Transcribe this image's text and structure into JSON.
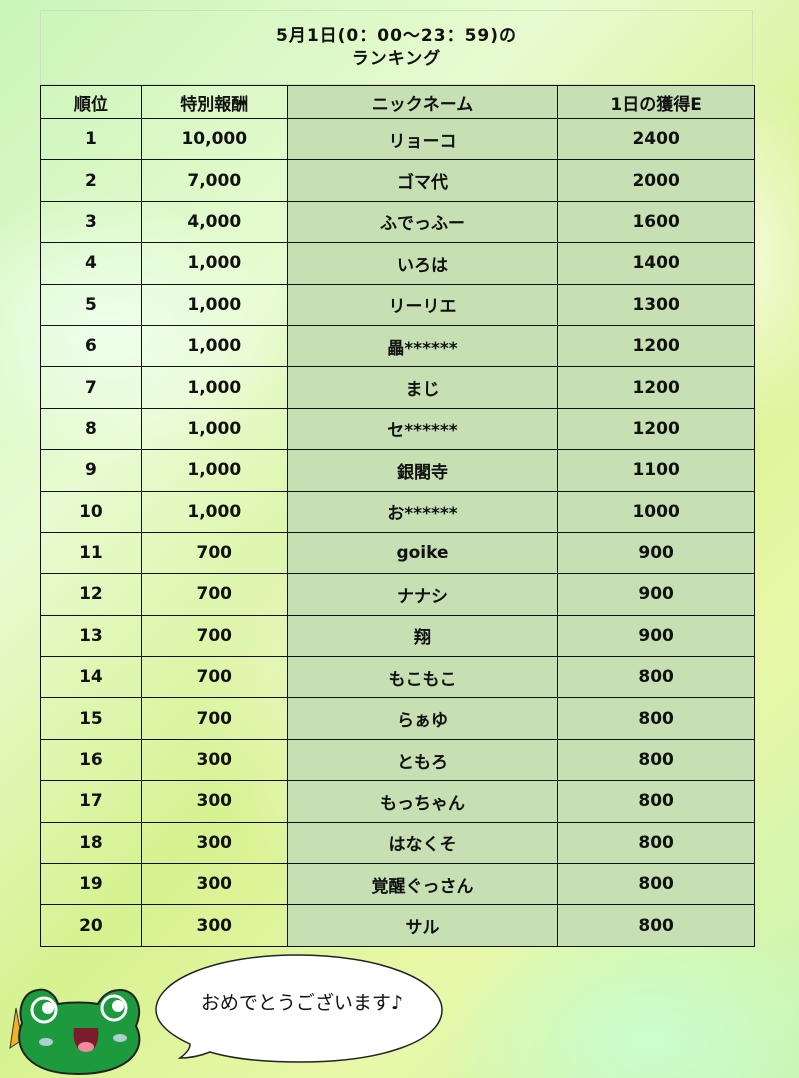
{
  "title": {
    "line1": "5月1日(0：00～23：59)の",
    "line2": "ランキング"
  },
  "headers": [
    "順位",
    "特別報酬",
    "ニックネーム",
    "1日の獲得E"
  ],
  "rows": [
    [
      "1",
      "10,000",
      "リョーコ",
      "2400"
    ],
    [
      "2",
      "7,000",
      "ゴマ代",
      "2000"
    ],
    [
      "3",
      "4,000",
      "ふでっふー",
      "1600"
    ],
    [
      "4",
      "1,000",
      "いろは",
      "1400"
    ],
    [
      "5",
      "1,000",
      "リーリエ",
      "1300"
    ],
    [
      "6",
      "1,000",
      "畾******",
      "1200"
    ],
    [
      "7",
      "1,000",
      "まじ",
      "1200"
    ],
    [
      "8",
      "1,000",
      "セ******",
      "1200"
    ],
    [
      "9",
      "1,000",
      "銀閣寺",
      "1100"
    ],
    [
      "10",
      "1,000",
      "お******",
      "1000"
    ],
    [
      "11",
      "700",
      "goike",
      "900"
    ],
    [
      "12",
      "700",
      "ナナシ",
      "900"
    ],
    [
      "13",
      "700",
      "翔",
      "900"
    ],
    [
      "14",
      "700",
      "もこもこ",
      "800"
    ],
    [
      "15",
      "700",
      "らぁゆ",
      "800"
    ],
    [
      "16",
      "300",
      "ともろ",
      "800"
    ],
    [
      "17",
      "300",
      "もっちゃん",
      "800"
    ],
    [
      "18",
      "300",
      "はなくそ",
      "800"
    ],
    [
      "19",
      "300",
      "覚醒ぐっさん",
      "800"
    ],
    [
      "20",
      "300",
      "サル",
      "800"
    ]
  ],
  "speech": "おめでとうございます♪",
  "colors": {
    "highlight_column": "#c6e0b4",
    "frog": "#1a9a3c"
  }
}
